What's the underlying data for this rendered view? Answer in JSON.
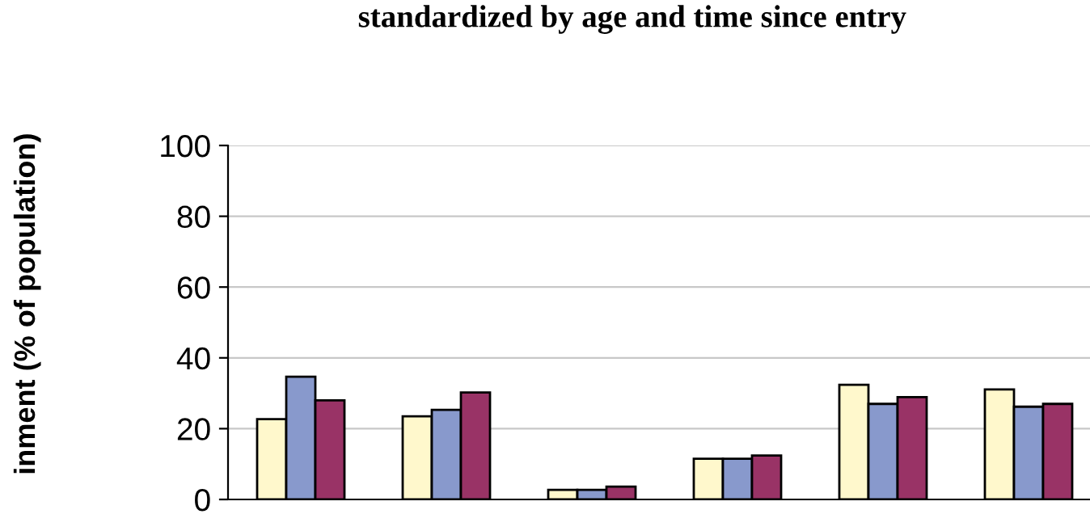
{
  "chart_data": {
    "type": "bar",
    "title": "standardized by age and time since entry",
    "ylabel": "inment (% of population)",
    "categories": [
      null,
      null,
      null,
      null,
      null,
      null
    ],
    "series": [
      {
        "color": "#fff8cc",
        "values": [
          22.7,
          23.5,
          2.7,
          11.5,
          32.4,
          31.1
        ]
      },
      {
        "color": "#8899cc",
        "values": [
          34.7,
          25.3,
          2.7,
          11.5,
          27,
          26.2
        ]
      },
      {
        "color": "#993366",
        "values": [
          28,
          30.2,
          3.6,
          12.4,
          28.9,
          27
        ]
      }
    ],
    "ylim": [
      0,
      100
    ],
    "yticks": [
      0,
      20,
      40,
      60,
      80,
      100
    ],
    "grid": "y",
    "legend": false
  }
}
